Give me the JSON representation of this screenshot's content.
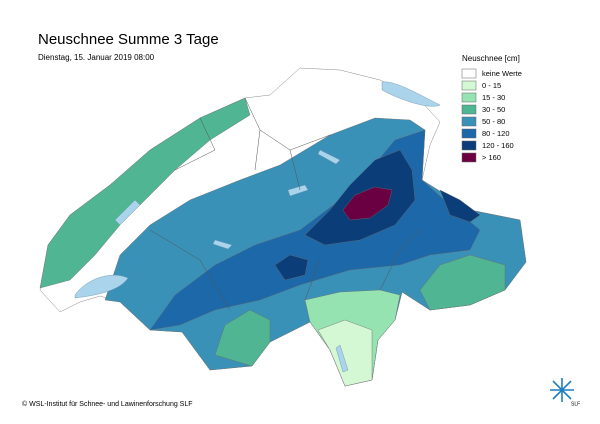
{
  "header": {
    "title": "Neuschnee Summe 3 Tage",
    "date": "Dienstag, 15. Januar 2019 08:00"
  },
  "legend": {
    "title": "Neuschnee [cm]",
    "items": [
      {
        "label": "keine Werte",
        "color": "#ffffff"
      },
      {
        "label": "0 - 15",
        "color": "#d4f7d4"
      },
      {
        "label": "15 - 30",
        "color": "#94e3b0"
      },
      {
        "label": "30 - 50",
        "color": "#4fb592"
      },
      {
        "label": "50 - 80",
        "color": "#3a91b8"
      },
      {
        "label": "80 - 120",
        "color": "#1c68a8"
      },
      {
        "label": "120 - 160",
        "color": "#0b3d78"
      },
      {
        "label": "> 160",
        "color": "#6a0042"
      }
    ]
  },
  "footer": {
    "copyright": "© WSL-Institut für Schnee- und Lawinenforschung SLF",
    "logo_text": "SLF"
  }
}
